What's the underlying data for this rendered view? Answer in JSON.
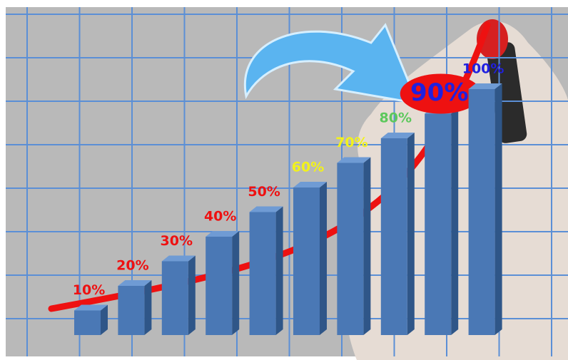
{
  "chart_data": {
    "type": "bar3d",
    "values": [
      10,
      20,
      30,
      40,
      50,
      60,
      70,
      80,
      90,
      100
    ],
    "value_labels": [
      "10%",
      "20%",
      "30%",
      "40%",
      "50%",
      "60%",
      "70%",
      "80%",
      "90%",
      "100%"
    ],
    "color": "#4a78b5",
    "label_colors": [
      "#ee1111",
      "#ee1111",
      "#ee1111",
      "#ee1111",
      "#ee1111",
      "#f2f21a",
      "#f2f21a",
      "#5cc85c",
      "#2020e0",
      "#2020e0"
    ],
    "label_backgrounds": [
      null,
      null,
      null,
      null,
      null,
      null,
      null,
      null,
      "#ee1111",
      null
    ],
    "grid": true
  }
}
